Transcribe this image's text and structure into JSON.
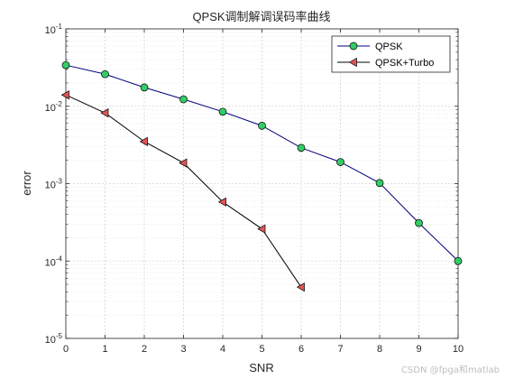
{
  "chart_data": {
    "type": "line",
    "title": "QPSK调制解调误码率曲线",
    "xlabel": "SNR",
    "ylabel": "error",
    "xlim": [
      0,
      10
    ],
    "ylim": [
      1e-05,
      0.1
    ],
    "yscale": "log",
    "grid": true,
    "minor_grid": true,
    "legend_position": "top-right",
    "x_ticks": [
      "0",
      "1",
      "2",
      "3",
      "4",
      "5",
      "6",
      "7",
      "8",
      "9",
      "10"
    ],
    "y_ticks": [
      {
        "base": "10",
        "exp": "-5",
        "value": 1e-05
      },
      {
        "base": "10",
        "exp": "-4",
        "value": 0.0001
      },
      {
        "base": "10",
        "exp": "-3",
        "value": 0.001
      },
      {
        "base": "10",
        "exp": "-2",
        "value": 0.01
      },
      {
        "base": "10",
        "exp": "-1",
        "value": 0.1
      }
    ],
    "series": [
      {
        "name": "QPSK",
        "x": [
          0,
          1,
          2,
          3,
          4,
          5,
          6,
          7,
          8,
          9,
          10
        ],
        "values": [
          0.034,
          0.026,
          0.0175,
          0.0123,
          0.0085,
          0.0056,
          0.0029,
          0.0019,
          0.00102,
          0.00031,
          0.0001
        ],
        "line_color": "#00007f",
        "marker": "circle",
        "marker_color": "#33cc66"
      },
      {
        "name": "QPSK+Turbo",
        "x": [
          0,
          1,
          2,
          3,
          4,
          5,
          6
        ],
        "values": [
          0.014,
          0.0082,
          0.0035,
          0.00185,
          0.00058,
          0.00026,
          4.6e-05
        ],
        "line_color": "#000000",
        "marker": "triangle-left",
        "marker_color": "#e05555"
      }
    ]
  },
  "watermark": "CSDN @fpga和matlab"
}
